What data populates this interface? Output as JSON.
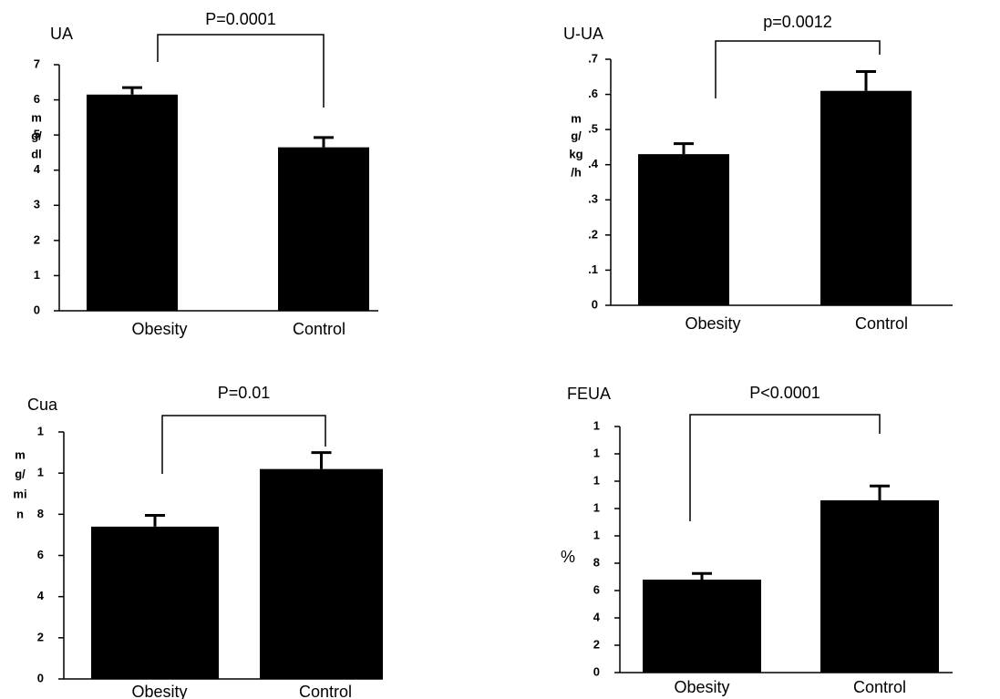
{
  "chart_data": [
    {
      "type": "bar",
      "title": "UA",
      "ylabel": [
        "m",
        "g/",
        "dl"
      ],
      "annotation": "P=0.0001",
      "categories": [
        "Obesity",
        "Control"
      ],
      "values": [
        6.15,
        4.65
      ],
      "errors": [
        0.2,
        0.28
      ],
      "color": "#000000",
      "ylim": [
        0,
        7
      ],
      "yticks": [
        0,
        1,
        2,
        3,
        4,
        5,
        6,
        7
      ]
    },
    {
      "type": "bar",
      "title": "U-UA",
      "ylabel": [
        "m",
        "g/",
        "kg",
        "/h"
      ],
      "annotation": "p=0.0012",
      "categories": [
        "Obesity",
        "Control"
      ],
      "values": [
        0.43,
        0.61
      ],
      "errors": [
        0.03,
        0.055
      ],
      "color": "#000000",
      "ylim": [
        0,
        0.7
      ],
      "yticks": [
        0,
        {
          "value": 0.1,
          "label": ".1"
        },
        {
          "value": 0.2,
          "label": ".2"
        },
        {
          "value": 0.3,
          "label": ".3"
        },
        {
          "value": 0.4,
          "label": ".4"
        },
        {
          "value": 0.5,
          "label": ".5"
        },
        {
          "value": 0.6,
          "label": ".6"
        },
        {
          "value": 0.7,
          "label": ".7"
        }
      ]
    },
    {
      "type": "bar",
      "title": "Cua",
      "ylabel": [
        "m",
        "g/",
        "mi",
        "n"
      ],
      "annotation": "P=0.01",
      "categories": [
        "Obesity",
        "Control"
      ],
      "values": [
        7.4,
        10.2
      ],
      "errors": [
        0.55,
        0.8
      ],
      "color": "#000000",
      "ylim": [
        0,
        12
      ],
      "yticks": [
        0,
        2,
        4,
        6,
        8,
        {
          "value": 10,
          "label": "1"
        },
        {
          "value": 12,
          "label": "1"
        }
      ]
    },
    {
      "type": "bar",
      "title": "FEUA",
      "ylabel": [
        "%"
      ],
      "annotation": "P<0.0001",
      "categories": [
        "Obesity",
        "Control"
      ],
      "values": [
        6.8,
        12.6
      ],
      "errors": [
        0.45,
        1.05
      ],
      "color": "#000000",
      "ylim": [
        0,
        18
      ],
      "yticks": [
        0,
        2,
        4,
        6,
        8,
        {
          "value": 10,
          "label": "1"
        },
        {
          "value": 12,
          "label": "1"
        },
        {
          "value": 14,
          "label": "1"
        },
        {
          "value": 16,
          "label": "1"
        },
        {
          "value": 18,
          "label": "1"
        }
      ]
    }
  ]
}
